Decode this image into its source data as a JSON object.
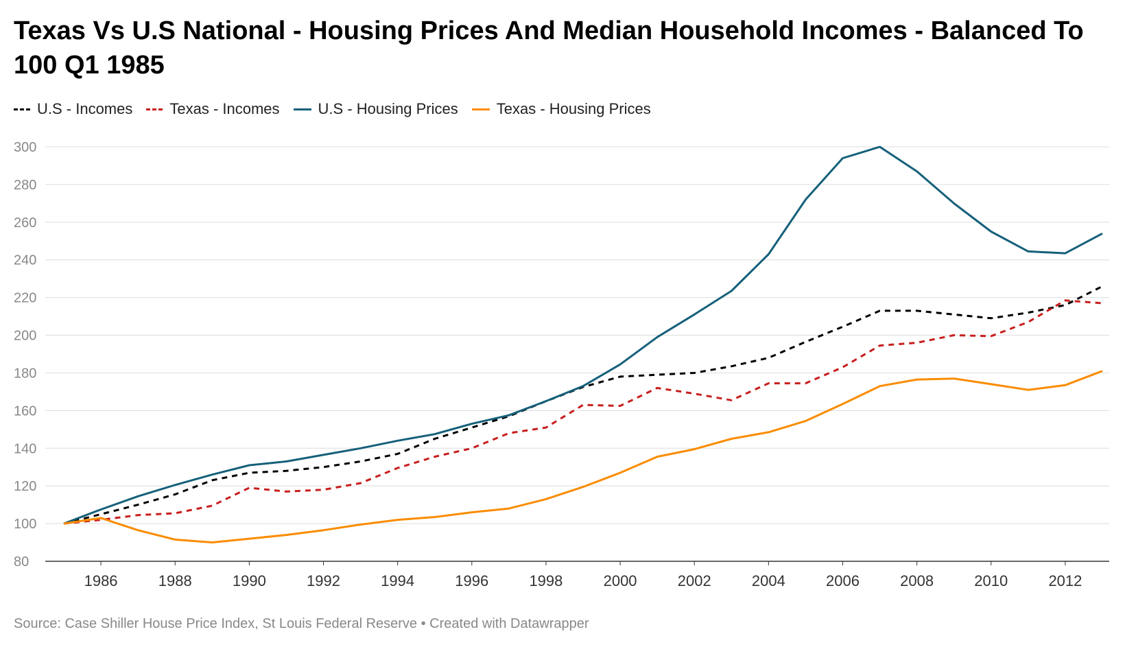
{
  "title": "Texas Vs U.S National - Housing Prices And Median Household Incomes - Balanced To 100 Q1 1985",
  "source": "Source: Case Shiller House Price Index, St Louis Federal Reserve • Created with Datawrapper",
  "legend": [
    {
      "label": "U.S - Incomes",
      "color": "#000000",
      "style": "dashed"
    },
    {
      "label": "Texas - Incomes",
      "color": "#c71e1d",
      "style": "dashed"
    },
    {
      "label": "U.S - Housing Prices",
      "color": "#15607a",
      "style": "solid"
    },
    {
      "label": "Texas - Housing Prices",
      "color": "#fa8c00",
      "style": "solid"
    }
  ],
  "chart_data": {
    "type": "line",
    "title": "Texas Vs U.S National - Housing Prices And Median Household Incomes - Balanced To 100 Q1 1985",
    "xlabel": "",
    "ylabel": "",
    "x": [
      1985,
      1986,
      1987,
      1988,
      1989,
      1990,
      1991,
      1992,
      1993,
      1994,
      1995,
      1996,
      1997,
      1998,
      1999,
      2000,
      2001,
      2002,
      2003,
      2004,
      2005,
      2006,
      2007,
      2008,
      2009,
      2010,
      2011,
      2012,
      2013
    ],
    "xlim": [
      1985,
      2013
    ],
    "xticks": [
      1986,
      1988,
      1990,
      1992,
      1994,
      1996,
      1998,
      2000,
      2002,
      2004,
      2006,
      2008,
      2010,
      2012
    ],
    "ylim": [
      80,
      300
    ],
    "yticks": [
      80,
      100,
      120,
      140,
      160,
      180,
      200,
      220,
      240,
      260,
      280,
      300
    ],
    "grid": true,
    "legend_position": "top-left",
    "series": [
      {
        "name": "U.S - Incomes",
        "color": "#000000",
        "style": "dashed",
        "values": [
          100,
          105,
          110,
          115.5,
          123,
          127,
          128,
          130,
          133,
          137,
          145,
          151,
          157,
          165,
          172.5,
          178,
          179,
          180,
          183.5,
          188,
          196.5,
          204.5,
          213,
          213,
          211,
          209,
          212,
          216,
          226
        ]
      },
      {
        "name": "Texas - Incomes",
        "color": "#c71e1d",
        "style": "dashed",
        "values": [
          100,
          102,
          104.5,
          105.5,
          109.5,
          119,
          117,
          118,
          121.5,
          129.5,
          135.5,
          140,
          148,
          151,
          163,
          162.5,
          172,
          169,
          165.5,
          174.5,
          174.5,
          183,
          194.5,
          196,
          200,
          199.5,
          207,
          218.5,
          217
        ]
      },
      {
        "name": "U.S - Housing Prices",
        "color": "#15607a",
        "style": "solid",
        "values": [
          100,
          107.5,
          114.5,
          120.5,
          126,
          131,
          133,
          136.5,
          140,
          144,
          147.5,
          153,
          157.5,
          165,
          173,
          184.5,
          199,
          211,
          223.5,
          243,
          272,
          294,
          300,
          287,
          270,
          255,
          244.5,
          243.5,
          254
        ]
      },
      {
        "name": "Texas - Housing Prices",
        "color": "#fa8c00",
        "style": "solid",
        "values": [
          100,
          103,
          96.5,
          91.5,
          90,
          92,
          94,
          96.5,
          99.5,
          102,
          103.5,
          106,
          108,
          113,
          119.5,
          127,
          135.5,
          139.5,
          145,
          148.5,
          154.5,
          163.5,
          173,
          176.5,
          177,
          174,
          171,
          173.5,
          181
        ]
      }
    ]
  }
}
